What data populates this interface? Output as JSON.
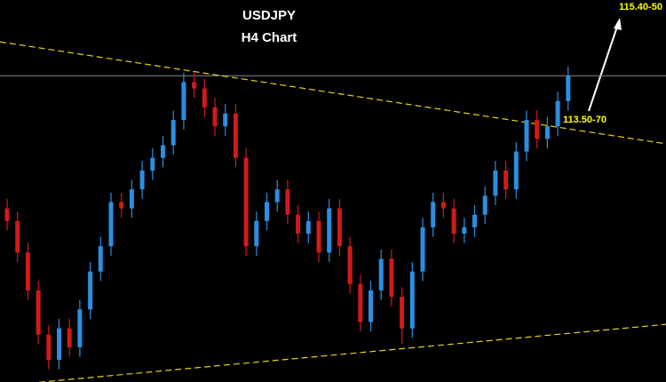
{
  "chart_data": {
    "type": "candlestick",
    "title": "USDJPY",
    "subtitle": "H4 Chart",
    "up_color": "#2b8fe0",
    "down_color": "#d11a1a",
    "ylim": [
      109.45,
      115.5
    ],
    "open": [
      112.2,
      112.0,
      111.5,
      110.9,
      110.2,
      109.8,
      110.3,
      110.0,
      110.6,
      111.2,
      111.6,
      112.3,
      112.2,
      112.5,
      112.8,
      113.0,
      113.2,
      113.6,
      114.2,
      114.1,
      113.8,
      113.5,
      113.7,
      113.0,
      111.6,
      112.0,
      112.3,
      112.5,
      112.1,
      111.8,
      112.0,
      111.5,
      112.2,
      111.6,
      111.0,
      110.4,
      110.9,
      111.4,
      110.8,
      110.3,
      111.2,
      111.9,
      112.3,
      112.2,
      111.8,
      111.9,
      112.1,
      112.4,
      112.8,
      112.5,
      113.1,
      113.6,
      113.3,
      113.5,
      113.9
    ],
    "high": [
      112.35,
      112.15,
      111.65,
      111.05,
      110.35,
      110.45,
      110.45,
      110.75,
      111.35,
      111.75,
      112.45,
      112.45,
      112.65,
      112.95,
      113.15,
      113.35,
      113.75,
      114.35,
      114.35,
      114.25,
      113.95,
      113.85,
      113.85,
      113.15,
      112.15,
      112.45,
      112.65,
      112.65,
      112.25,
      112.15,
      112.15,
      112.35,
      112.35,
      111.75,
      111.15,
      111.05,
      111.55,
      111.55,
      110.95,
      111.35,
      112.05,
      112.45,
      112.45,
      112.35,
      112.05,
      112.25,
      112.55,
      112.95,
      112.95,
      113.25,
      113.75,
      113.75,
      113.65,
      114.05,
      114.45
    ],
    "low": [
      111.85,
      111.35,
      110.75,
      110.05,
      109.65,
      109.65,
      109.85,
      109.85,
      110.45,
      111.05,
      111.45,
      112.05,
      112.05,
      112.35,
      112.65,
      112.85,
      113.05,
      113.45,
      113.95,
      113.65,
      113.35,
      113.35,
      112.85,
      111.45,
      111.45,
      111.85,
      112.15,
      111.95,
      111.65,
      111.65,
      111.35,
      111.35,
      111.45,
      110.85,
      110.25,
      110.25,
      110.75,
      110.65,
      110.05,
      110.15,
      111.05,
      111.75,
      112.05,
      111.65,
      111.65,
      111.75,
      111.95,
      112.25,
      112.35,
      112.35,
      112.95,
      113.15,
      113.15,
      113.35,
      113.75
    ],
    "close": [
      112.0,
      111.5,
      110.9,
      110.2,
      109.8,
      110.3,
      110.0,
      110.6,
      111.2,
      111.6,
      112.3,
      112.2,
      112.5,
      112.8,
      113.0,
      113.2,
      113.6,
      114.2,
      114.1,
      113.8,
      113.5,
      113.7,
      113.0,
      111.6,
      112.0,
      112.3,
      112.5,
      112.1,
      111.8,
      112.0,
      111.5,
      112.2,
      111.6,
      111.0,
      110.4,
      110.9,
      111.4,
      110.8,
      110.3,
      111.2,
      111.9,
      112.3,
      112.2,
      111.8,
      111.9,
      112.1,
      112.4,
      112.8,
      112.5,
      113.1,
      113.6,
      113.3,
      113.5,
      113.9,
      114.3
    ],
    "horizontal_line": {
      "value": 114.3,
      "color": "#8a8a8a"
    },
    "trendlines": [
      {
        "x": [
          0,
          54
        ],
        "y": [
          114.82,
          113.46
        ],
        "color": "#e6d21a"
      },
      {
        "x": [
          4,
          54
        ],
        "y": [
          109.46,
          110.22
        ],
        "color": "#e6d21a"
      }
    ],
    "annotations": [
      {
        "text": "113.50-70",
        "value": 113.6,
        "color": "#ffff00"
      },
      {
        "text": "115.40-50",
        "value": 115.45,
        "color": "#ffff00"
      }
    ]
  }
}
